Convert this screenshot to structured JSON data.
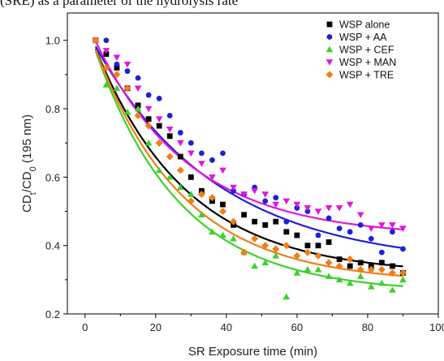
{
  "caption_fragment": "(SRE) as a parameter of the hydrolysis rate",
  "chart_data": {
    "type": "scatter",
    "title": "",
    "xlabel": "SR Exposure time (min)",
    "ylabel_parts": [
      "CD",
      "t",
      "/CD",
      "0",
      " (195 nm)"
    ],
    "xlim": [
      -5,
      100
    ],
    "ylim": [
      0.2,
      1.08
    ],
    "xticks": [
      0,
      20,
      40,
      60,
      80,
      100
    ],
    "xtick_labels": [
      "0",
      "20",
      "40",
      "60",
      "80",
      "100"
    ],
    "yticks": [
      0.2,
      0.4,
      0.6,
      0.8,
      1.0
    ],
    "ytick_labels": [
      "0.2",
      "0.4",
      "0.6",
      "0.8",
      "1.0"
    ],
    "grid": false,
    "legend_position": "top-right",
    "series": [
      {
        "name": "WSP alone",
        "color": "#000000",
        "marker": "square",
        "x": [
          3,
          6,
          9,
          12,
          15,
          18,
          21,
          24,
          27,
          30,
          33,
          36,
          39,
          42,
          45,
          48,
          51,
          54,
          57,
          60,
          63,
          66,
          69,
          72,
          75,
          78,
          81,
          84,
          87,
          90
        ],
        "y": [
          1.0,
          0.96,
          0.92,
          0.86,
          0.81,
          0.77,
          0.75,
          0.72,
          0.66,
          0.6,
          0.56,
          0.53,
          0.52,
          0.46,
          0.49,
          0.47,
          0.46,
          0.47,
          0.44,
          0.43,
          0.4,
          0.4,
          0.41,
          0.36,
          0.34,
          0.35,
          0.34,
          0.35,
          0.34,
          0.32
        ],
        "fit": {
          "a": 0.316,
          "b": 0.74,
          "k": 0.0385
        }
      },
      {
        "name": "WSP + AA",
        "color": "#1f1fd6",
        "marker": "circle",
        "x": [
          3,
          6,
          9,
          12,
          15,
          18,
          21,
          24,
          27,
          30,
          33,
          36,
          39,
          42,
          45,
          48,
          51,
          54,
          57,
          60,
          63,
          66,
          69,
          72,
          75,
          78,
          81,
          84,
          87,
          90
        ],
        "y": [
          1.0,
          1.0,
          0.93,
          0.91,
          0.89,
          0.84,
          0.83,
          0.78,
          0.73,
          0.7,
          0.67,
          0.65,
          0.67,
          0.56,
          0.55,
          0.57,
          0.53,
          0.54,
          0.47,
          0.51,
          0.5,
          0.43,
          0.48,
          0.45,
          0.44,
          0.46,
          0.42,
          0.38,
          0.44,
          0.39
        ],
        "fit": {
          "a": 0.34,
          "b": 0.7,
          "k": 0.0288
        }
      },
      {
        "name": "WSP + CEF",
        "color": "#3bd12a",
        "marker": "triangle-up",
        "x": [
          3,
          6,
          9,
          12,
          15,
          18,
          21,
          24,
          27,
          30,
          33,
          36,
          39,
          42,
          45,
          48,
          51,
          54,
          57,
          60,
          63,
          66,
          69,
          72,
          75,
          78,
          81,
          84,
          87,
          90
        ],
        "y": [
          1.0,
          0.87,
          0.86,
          0.79,
          0.8,
          0.7,
          0.62,
          0.6,
          0.57,
          0.55,
          0.49,
          0.44,
          0.43,
          0.42,
          0.38,
          0.34,
          0.35,
          0.37,
          0.25,
          0.32,
          0.33,
          0.33,
          0.31,
          0.3,
          0.29,
          0.31,
          0.28,
          0.29,
          0.27,
          0.3
        ],
        "fit": {
          "a": 0.262,
          "b": 0.8,
          "k": 0.0415
        }
      },
      {
        "name": "WSP + MAN",
        "color": "#e316dc",
        "marker": "triangle-down",
        "x": [
          3,
          6,
          9,
          12,
          15,
          18,
          21,
          24,
          27,
          30,
          33,
          36,
          39,
          42,
          45,
          48,
          51,
          54,
          57,
          60,
          63,
          66,
          69,
          72,
          75,
          78,
          81,
          84,
          87,
          90
        ],
        "y": [
          1.0,
          0.97,
          0.95,
          0.93,
          0.86,
          0.8,
          0.77,
          0.74,
          0.7,
          0.67,
          0.64,
          0.6,
          0.62,
          0.57,
          0.55,
          0.56,
          0.55,
          0.52,
          0.53,
          0.52,
          0.51,
          0.5,
          0.51,
          0.51,
          0.52,
          0.49,
          0.45,
          0.46,
          0.46,
          0.45
        ],
        "fit": {
          "a": 0.425,
          "b": 0.64,
          "k": 0.0375
        }
      },
      {
        "name": "WSP + TRE",
        "color": "#f07e17",
        "marker": "diamond",
        "x": [
          3,
          6,
          9,
          12,
          15,
          18,
          21,
          24,
          27,
          30,
          33,
          36,
          39,
          42,
          45,
          48,
          51,
          54,
          57,
          60,
          63,
          66,
          69,
          72,
          75,
          78,
          81,
          84,
          87,
          90
        ],
        "y": [
          1.0,
          0.92,
          0.9,
          0.86,
          0.78,
          0.75,
          0.7,
          0.66,
          0.62,
          0.53,
          0.55,
          0.54,
          0.5,
          0.47,
          0.38,
          0.42,
          0.4,
          0.39,
          0.4,
          0.37,
          0.38,
          0.37,
          0.35,
          0.34,
          0.36,
          0.33,
          0.33,
          0.33,
          0.32,
          0.32
        ],
        "fit": {
          "a": 0.29,
          "b": 0.77,
          "k": 0.04
        }
      }
    ]
  }
}
